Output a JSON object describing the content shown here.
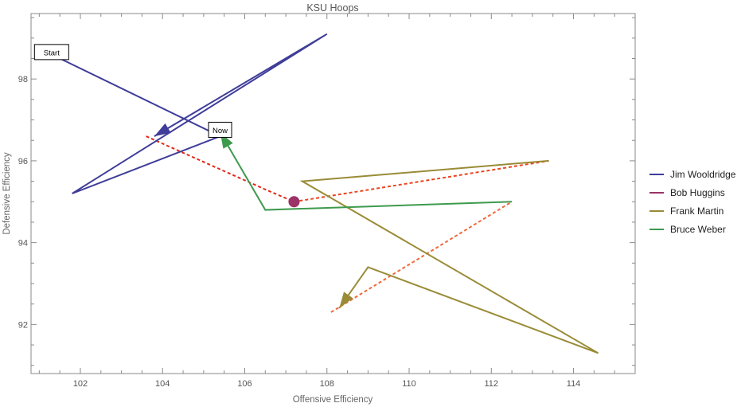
{
  "chart_data": {
    "type": "line",
    "title": "KSU Hoops",
    "xlabel": "Offensive Efficiency",
    "ylabel": "Defensive Efficiency",
    "xlim": [
      100.8,
      115.5
    ],
    "ylim": [
      90.8,
      99.6
    ],
    "xticks": [
      102,
      104,
      106,
      108,
      110,
      112,
      114
    ],
    "yticks": [
      92,
      94,
      96,
      98
    ],
    "grid": false,
    "legend_position": "right",
    "series": [
      {
        "name": "Jim Wooldridge",
        "color": "#3f3d99",
        "style": "solid",
        "points": [
          [
            101.3,
            98.6
          ],
          [
            105.4,
            96.6
          ],
          [
            101.8,
            95.2
          ],
          [
            108.0,
            99.1
          ],
          [
            103.8,
            96.6
          ]
        ],
        "arrow_at_end": true
      },
      {
        "name": "Bob Huggins",
        "color": "#9b3268",
        "style": "marker",
        "points": [
          [
            107.2,
            95.0
          ]
        ]
      },
      {
        "name": "Frank Martin",
        "color": "#9a8b36",
        "style": "solid",
        "points": [
          [
            113.4,
            96.0
          ],
          [
            107.4,
            95.5
          ],
          [
            114.6,
            91.3
          ],
          [
            109.0,
            93.4
          ],
          [
            108.3,
            92.4
          ]
        ],
        "arrow_at_end": true
      },
      {
        "name": "Bruce Weber",
        "color": "#3d9a4d",
        "style": "solid",
        "points": [
          [
            112.5,
            95.0
          ],
          [
            106.5,
            94.8
          ],
          [
            105.4,
            96.7
          ]
        ],
        "arrow_at_end": true
      }
    ],
    "transitions": [
      {
        "points": [
          [
            103.6,
            96.6
          ],
          [
            106.5,
            95.3
          ],
          [
            107.2,
            95.0
          ]
        ],
        "color": "#e12a1a"
      },
      {
        "points": [
          [
            107.2,
            95.0
          ],
          [
            113.4,
            96.0
          ]
        ],
        "color": "#e8461f"
      },
      {
        "points": [
          [
            108.1,
            92.3
          ],
          [
            112.5,
            95.0
          ]
        ],
        "color": "#f0683a"
      }
    ],
    "annotations": [
      {
        "text": "Start",
        "x": 101.3,
        "y": 98.6
      },
      {
        "text": "Now",
        "x": 105.4,
        "y": 96.7
      }
    ]
  }
}
